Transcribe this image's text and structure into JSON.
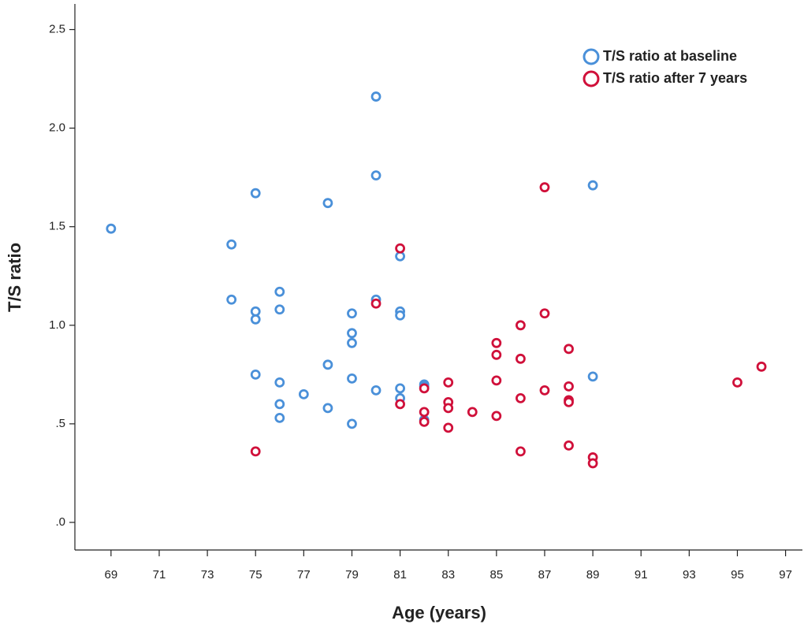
{
  "chart_data": {
    "type": "scatter",
    "x_label": "Age (years)",
    "y_label": "T/S ratio",
    "xlim": [
      67.5,
      97.7
    ],
    "ylim": [
      -0.14,
      2.63
    ],
    "xticks": [
      69,
      71,
      73,
      75,
      77,
      79,
      81,
      83,
      85,
      87,
      89,
      91,
      93,
      95,
      97
    ],
    "yticks": [
      {
        "value": 0,
        "label": ".0"
      },
      {
        "value": 0.5,
        "label": ".5"
      },
      {
        "value": 1,
        "label": "1.0"
      },
      1.5,
      {
        "value": 2,
        "label": "2.0"
      },
      2.5
    ],
    "grid": false,
    "legend": "top-right",
    "series": [
      {
        "name": "T/S ratio at baseline",
        "color": "#4a90d9",
        "x": [
          69,
          74,
          74,
          75,
          75,
          75,
          75,
          76,
          76,
          76,
          76,
          76,
          77,
          78,
          78,
          78,
          79,
          79,
          79,
          79,
          79,
          80,
          80,
          80,
          80,
          81,
          81,
          81,
          81,
          81,
          82,
          82,
          82,
          89,
          89
        ],
        "values": [
          1.49,
          1.41,
          1.13,
          1.67,
          1.07,
          1.03,
          0.75,
          1.17,
          1.08,
          0.71,
          0.6,
          0.53,
          0.65,
          1.62,
          0.8,
          0.58,
          1.06,
          0.96,
          0.91,
          0.73,
          0.5,
          2.16,
          1.76,
          1.13,
          0.67,
          1.35,
          1.07,
          1.05,
          0.68,
          0.63,
          0.7,
          0.69,
          0.52,
          1.71,
          0.74
        ]
      },
      {
        "name": "T/S ratio after 7 years",
        "color": "#d0103a",
        "x": [
          75,
          80,
          81,
          81,
          82,
          82,
          82,
          83,
          83,
          83,
          83,
          84,
          85,
          85,
          85,
          85,
          86,
          86,
          86,
          86,
          87,
          87,
          87,
          88,
          88,
          88,
          88,
          88,
          89,
          89,
          95,
          96
        ],
        "values": [
          0.36,
          1.11,
          1.39,
          0.6,
          0.68,
          0.56,
          0.51,
          0.71,
          0.61,
          0.58,
          0.48,
          0.56,
          0.91,
          0.85,
          0.72,
          0.54,
          1.0,
          0.83,
          0.63,
          0.36,
          1.7,
          1.06,
          0.67,
          0.88,
          0.69,
          0.62,
          0.61,
          0.39,
          0.33,
          0.3,
          0.71,
          0.79
        ]
      }
    ]
  }
}
